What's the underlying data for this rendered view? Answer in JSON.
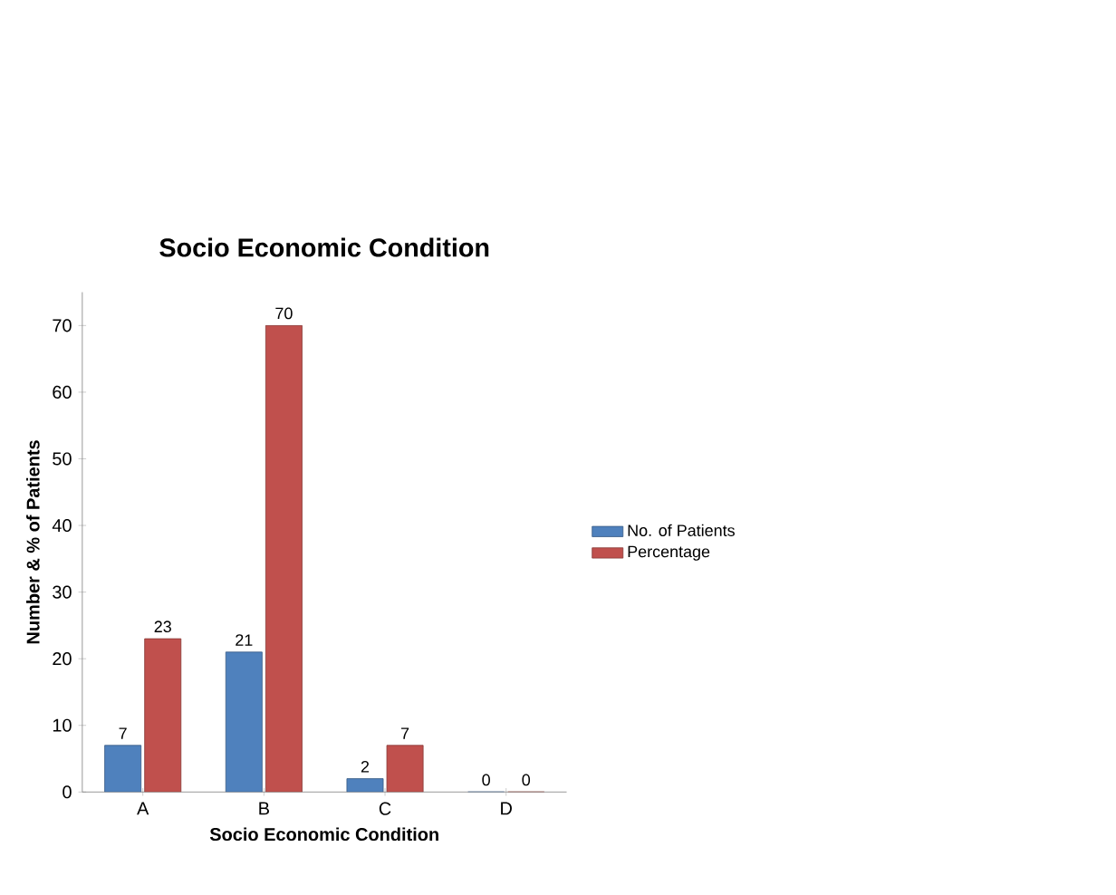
{
  "chart_data": {
    "type": "bar",
    "title": "Socio Economic Condition",
    "xlabel": "Socio Economic Condition",
    "ylabel": "Number & % of Patients",
    "categories": [
      "A",
      "B",
      "C",
      "D"
    ],
    "series": [
      {
        "name": "No. of Patients",
        "color": "#4f81bd",
        "values": [
          7,
          21,
          2,
          0
        ]
      },
      {
        "name": "Percentage",
        "color": "#c0504d",
        "values": [
          23,
          70,
          7,
          0
        ]
      }
    ],
    "ylim": [
      0,
      75
    ],
    "yticks": [
      0,
      10,
      20,
      30,
      40,
      50,
      60,
      70
    ],
    "data_labels": true,
    "legend": "right"
  }
}
